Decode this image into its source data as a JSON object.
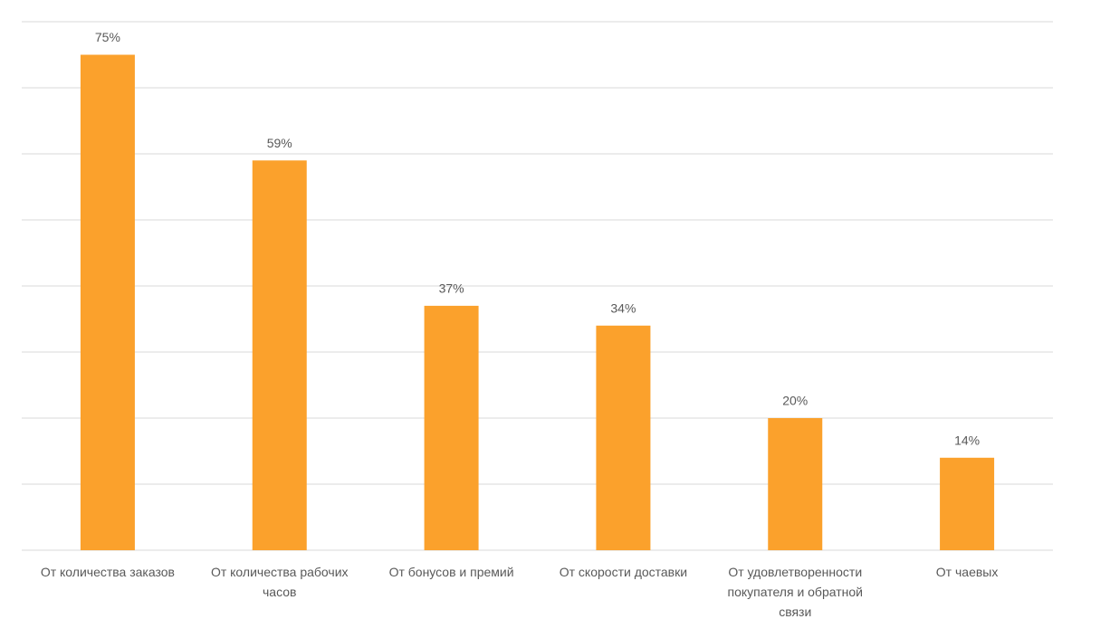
{
  "chart_data": {
    "type": "bar",
    "categories": [
      "От количества заказов",
      "От количества рабочих часов",
      "От бонусов и премий",
      "От скорости доставки",
      "От удовлетворенности покупателя и обратной связи",
      "От чаевых"
    ],
    "values": [
      75,
      59,
      37,
      34,
      20,
      14
    ],
    "value_labels": [
      "75%",
      "59%",
      "37%",
      "34%",
      "20%",
      "14%"
    ],
    "color": "#fba12c",
    "ylim": [
      0,
      80
    ],
    "yticks": [
      0,
      10,
      20,
      30,
      40,
      50,
      60,
      70,
      80
    ],
    "grid": true
  }
}
